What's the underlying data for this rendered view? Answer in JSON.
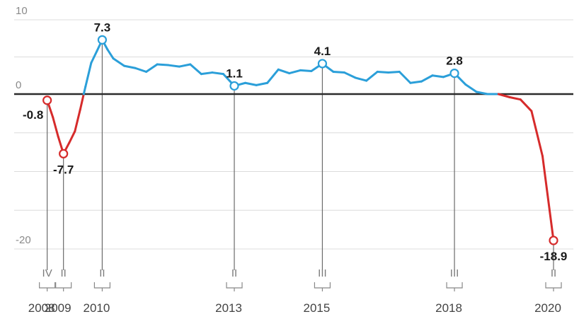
{
  "chart_data": {
    "type": "line",
    "title": "",
    "xlabel": "",
    "ylabel": "",
    "ylim": [
      -20,
      10
    ],
    "yticks": [
      10,
      0,
      -20
    ],
    "grid": true,
    "colors": {
      "positive": "#2b9fd9",
      "negative": "#d62b2b",
      "zero_line": "#2b2b2b",
      "grid": "#dcdcdc"
    },
    "series": [
      {
        "x": [
          2008.75,
          2008.88,
          2009.0,
          2009.12,
          2009.25,
          2009.38,
          2009.5,
          2009.62,
          2009.75,
          2009.88,
          2010.0,
          2010.12,
          2010.25,
          2010.5,
          2010.75,
          2011.0,
          2011.25,
          2011.5,
          2011.75,
          2012.0,
          2012.25,
          2012.5,
          2012.75,
          2013.0,
          2013.25,
          2013.5,
          2013.75,
          2014.0,
          2014.25,
          2014.5,
          2014.75,
          2015.0,
          2015.25,
          2015.5,
          2015.75,
          2016.0,
          2016.25,
          2016.5,
          2016.75,
          2017.0,
          2017.25,
          2017.5,
          2017.75,
          2018.0,
          2018.25,
          2018.5,
          2018.75,
          2019.0,
          2019.25,
          2019.5,
          2019.75,
          2020.0,
          2020.25
        ],
        "values": [
          -0.8,
          -3.0,
          -5.5,
          -7.7,
          -6.3,
          -4.8,
          -2.0,
          1.0,
          4.2,
          5.8,
          7.3,
          6.0,
          4.8,
          3.8,
          3.5,
          3.0,
          4.0,
          3.9,
          3.7,
          4.0,
          2.7,
          2.9,
          2.7,
          1.1,
          1.5,
          1.2,
          1.5,
          3.3,
          2.8,
          3.2,
          3.1,
          4.1,
          3.0,
          2.9,
          2.2,
          1.8,
          3.0,
          2.9,
          3.0,
          1.5,
          1.7,
          2.5,
          2.3,
          2.8,
          1.3,
          0.3,
          0.0,
          0.0,
          -0.4,
          -0.7,
          -2.2,
          -8.0,
          -18.9
        ]
      }
    ],
    "data_labels": [
      {
        "x": 2008.75,
        "y": -0.8,
        "text": "-0.8"
      },
      {
        "x": 2009.12,
        "y": -7.7,
        "text": "-7.7"
      },
      {
        "x": 2010.0,
        "y": 7.3,
        "text": "7.3"
      },
      {
        "x": 2013.0,
        "y": 1.1,
        "text": "1.1"
      },
      {
        "x": 2015.0,
        "y": 4.1,
        "text": "4.1"
      },
      {
        "x": 2018.0,
        "y": 2.8,
        "text": "2.8"
      },
      {
        "x": 2020.25,
        "y": -18.9,
        "text": "-18.9"
      }
    ],
    "quarter_markers": [
      {
        "x": 2008.75,
        "quarter": "IV",
        "year": "2008"
      },
      {
        "x": 2009.12,
        "quarter": "II",
        "year": "2009"
      },
      {
        "x": 2010.0,
        "quarter": "II",
        "year": "2010"
      },
      {
        "x": 2013.0,
        "quarter": "II",
        "year": "2013"
      },
      {
        "x": 2015.0,
        "quarter": "III",
        "year": "2015"
      },
      {
        "x": 2018.0,
        "quarter": "III",
        "year": "2018"
      },
      {
        "x": 2020.25,
        "quarter": "II",
        "year": "2020"
      }
    ]
  }
}
